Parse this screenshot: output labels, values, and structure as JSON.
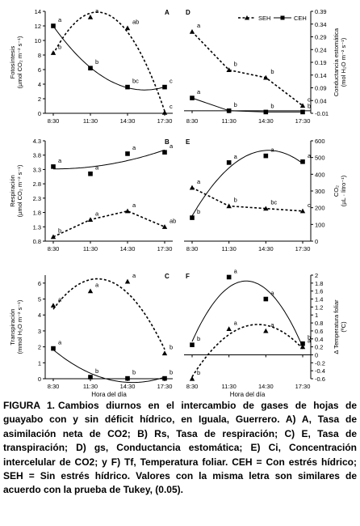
{
  "legend": {
    "seh": "SEH",
    "ceh": "CEH"
  },
  "caption": {
    "label": "FIGURA 1.",
    "text": "Cambios diurnos en el intercambio de gases de hojas de guayabo con y sin  déficit hídrico, en Iguala, Guerrero. A) A, Tasa de asimilación neta de CO2; B) Rs, Tasa de respiración; C) E, Tasa de transpiración; D) gs, Conductancia estomática; E) Ci, Concentración intercelular de CO2; y F) Tf, Temperatura foliar. CEH  = Con estrés hídrico; SEH = Sin estrés hídrico. Valores con la misma letra son similares de acuerdo con la prueba de Tukey, (0.05)."
  },
  "chart_data": [
    {
      "id": "A",
      "type": "line",
      "panel_label": "A",
      "ylabel": [
        "Fotosíntesis",
        "(µmol CO₂ m⁻² s⁻¹)"
      ],
      "xlabel": "",
      "categories": [
        "8:30",
        "11:30",
        "14:30",
        "17:30"
      ],
      "yticks": [
        0,
        2,
        4,
        6,
        8,
        10,
        12,
        14
      ],
      "ylim": [
        0,
        14
      ],
      "series": [
        {
          "name": "SEH",
          "style": "dashed",
          "marker": "triangle",
          "values": [
            8.3,
            13.2,
            11.7,
            0.1
          ],
          "letters": [
            "b",
            "a",
            "ab",
            "c"
          ]
        },
        {
          "name": "CEH",
          "style": "solid",
          "marker": "square",
          "values": [
            12.0,
            6.2,
            3.6,
            3.6
          ],
          "letters": [
            "a",
            "b",
            "bc",
            "c"
          ]
        }
      ]
    },
    {
      "id": "B",
      "type": "line",
      "panel_label": "B",
      "ylabel": [
        "Respiración",
        "(µmol CO₂ m⁻² s⁻¹)"
      ],
      "xlabel": "",
      "categories": [
        "8:30",
        "11:30",
        "14:30",
        "17:30"
      ],
      "yticks": [
        0.8,
        1.3,
        1.8,
        2.3,
        2.8,
        3.3,
        3.8,
        4.3
      ],
      "ylim": [
        0.8,
        4.3
      ],
      "series": [
        {
          "name": "SEH",
          "style": "dashed",
          "marker": "triangle",
          "values": [
            0.95,
            1.55,
            1.85,
            1.3
          ],
          "letters": [
            "b",
            "a",
            "a",
            "ab"
          ]
        },
        {
          "name": "CEH",
          "style": "solid",
          "marker": "square",
          "values": [
            3.4,
            3.15,
            3.85,
            3.9
          ],
          "letters": [
            "a",
            "a",
            "a",
            "a"
          ]
        }
      ]
    },
    {
      "id": "C",
      "type": "line",
      "panel_label": "C",
      "ylabel": [
        "Transpiración",
        "(mmol H₂O m⁻² s⁻¹)"
      ],
      "xlabel": "Hora del día",
      "categories": [
        "8:30",
        "11:30",
        "14:30",
        "17:30"
      ],
      "yticks": [
        0,
        1,
        2,
        3,
        4,
        5,
        6
      ],
      "ylim": [
        0,
        6.5
      ],
      "series": [
        {
          "name": "SEH",
          "style": "dashed",
          "marker": "triangle",
          "values": [
            4.6,
            5.5,
            6.1,
            1.6
          ],
          "letters": [
            "a",
            "a",
            "a",
            "b"
          ]
        },
        {
          "name": "CEH",
          "style": "solid",
          "marker": "square",
          "values": [
            1.9,
            0.1,
            0.02,
            0.02
          ],
          "letters": [
            "a",
            "b",
            "b",
            "b"
          ]
        }
      ]
    },
    {
      "id": "D",
      "type": "line",
      "panel_label": "D",
      "ylabel": [
        "Conductancia estomática",
        "(mol H₂O m⁻² s⁻¹)"
      ],
      "xlabel": "",
      "legend_position": "top-right",
      "categories": [
        "8:30",
        "11:30",
        "14:30",
        "17:30"
      ],
      "yticks": [
        -0.01,
        0.04,
        0.09,
        0.14,
        0.19,
        0.24,
        0.29,
        0.34,
        0.39
      ],
      "ylim": [
        -0.01,
        0.39
      ],
      "series": [
        {
          "name": "SEH",
          "style": "dashed",
          "marker": "triangle",
          "values": [
            0.31,
            0.16,
            0.13,
            0.02
          ],
          "letters": [
            "a",
            "b",
            "b",
            "c"
          ]
        },
        {
          "name": "CEH",
          "style": "solid",
          "marker": "square",
          "values": [
            0.05,
            0.0,
            -0.005,
            -0.005
          ],
          "letters": [
            "a",
            "b",
            "b",
            "b"
          ]
        }
      ]
    },
    {
      "id": "E",
      "type": "line",
      "panel_label": "E",
      "ylabel": [
        "CO₂",
        "(µL · litro⁻¹)"
      ],
      "xlabel": "",
      "categories": [
        "8:30",
        "11:30",
        "14:30",
        "17:30"
      ],
      "yticks": [
        0,
        100,
        200,
        300,
        400,
        500,
        600
      ],
      "ylim": [
        0,
        600
      ],
      "series": [
        {
          "name": "SEH",
          "style": "dashed",
          "marker": "triangle",
          "values": [
            320,
            210,
            195,
            180
          ],
          "letters": [
            "a",
            "b",
            "bc",
            "c"
          ]
        },
        {
          "name": "CEH",
          "style": "solid",
          "marker": "square",
          "values": [
            140,
            470,
            510,
            475
          ],
          "letters": [
            "b",
            "a",
            "a",
            "a"
          ]
        }
      ]
    },
    {
      "id": "F",
      "type": "line",
      "panel_label": "F",
      "ylabel": [
        "Δ Temperatura foliar",
        "(ºC)"
      ],
      "xlabel": "Hora del día",
      "categories": [
        "8:30",
        "11:30",
        "14:30",
        "17:30"
      ],
      "yticks": [
        -0.6,
        -0.4,
        -0.2,
        0,
        0.2,
        0.4,
        0.6,
        0.8,
        1,
        1.2,
        1.4,
        1.6,
        1.8,
        2
      ],
      "ylim": [
        -0.6,
        2
      ],
      "series": [
        {
          "name": "SEH",
          "style": "dashed",
          "marker": "triangle",
          "values": [
            -0.6,
            0.65,
            0.6,
            0.2
          ],
          "letters": [
            "b",
            "a",
            "a",
            "a"
          ]
        },
        {
          "name": "CEH",
          "style": "solid",
          "marker": "square",
          "values": [
            0.25,
            1.95,
            1.4,
            0.28
          ],
          "letters": [
            "b",
            "a",
            "a",
            "b"
          ]
        }
      ]
    }
  ]
}
